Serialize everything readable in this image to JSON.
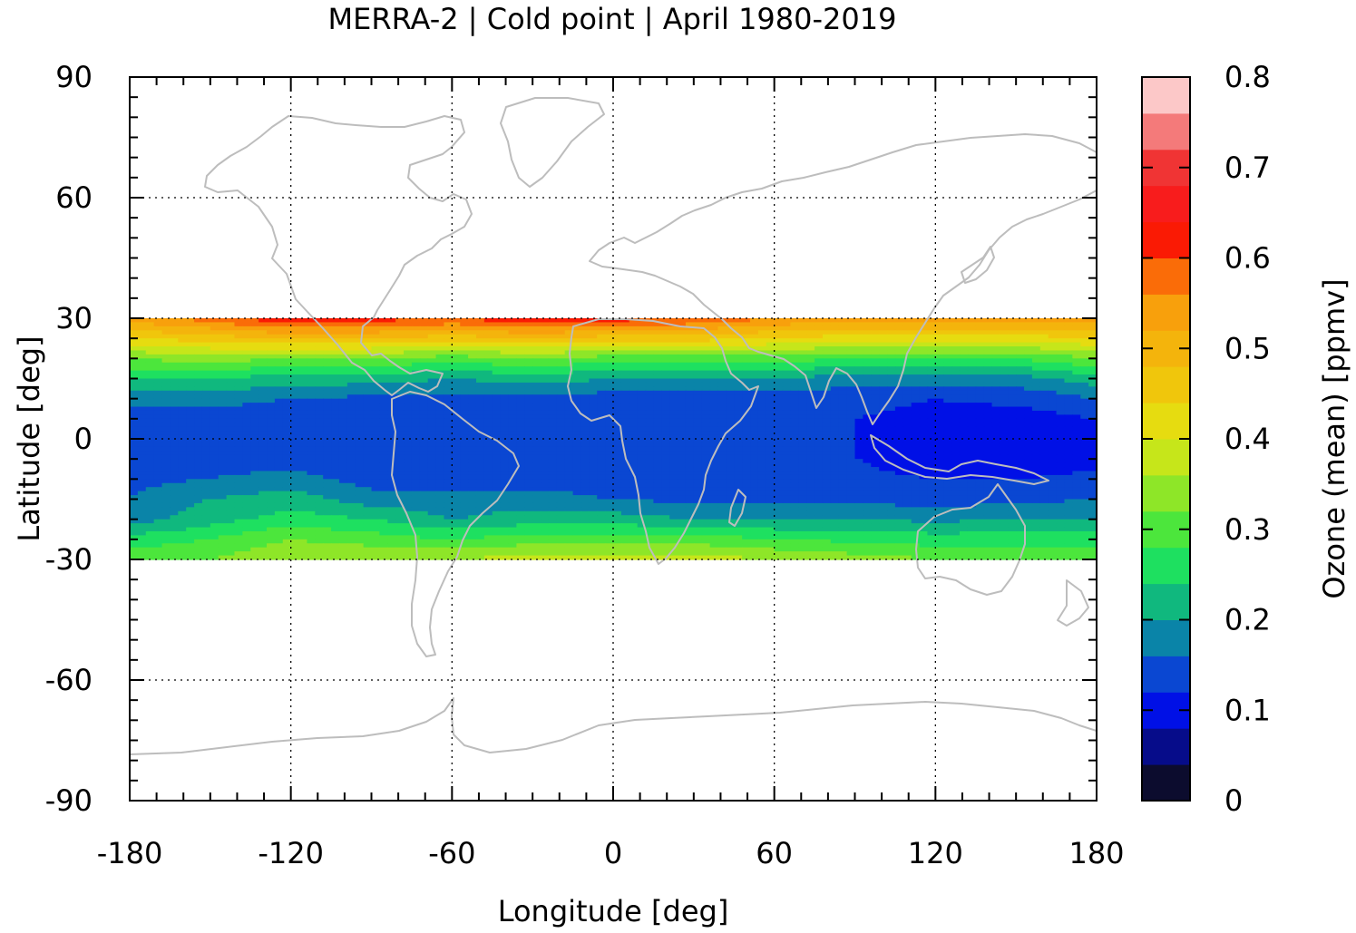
{
  "chart_data": {
    "type": "heatmap",
    "title": "MERRA-2 | Cold point | April 1980-2019",
    "xlabel": "Longitude [deg]",
    "ylabel": "Latitude [deg]",
    "colorbar_label": "Ozone (mean) [ppmv]",
    "xlim": [
      -180,
      180
    ],
    "ylim": [
      -90,
      90
    ],
    "data_lat_range": [
      -30,
      30
    ],
    "x_ticks": [
      -180,
      -120,
      -60,
      0,
      60,
      120,
      180
    ],
    "y_ticks": [
      -90,
      -60,
      -30,
      0,
      30,
      60,
      90
    ],
    "x_tick_labels": [
      "-180",
      "-120",
      "-60",
      "0",
      "60",
      "120",
      "180"
    ],
    "y_tick_labels": [
      "-90",
      "-60",
      "-30",
      "0",
      "30",
      "60",
      "90"
    ],
    "grid": "dotted",
    "colorbar": {
      "range": [
        0,
        0.8
      ],
      "ticks": [
        0,
        0.1,
        0.2,
        0.3,
        0.4,
        0.5,
        0.6,
        0.7,
        0.8
      ],
      "tick_labels": [
        "0",
        "0.1",
        "0.2",
        "0.3",
        "0.4",
        "0.5",
        "0.6",
        "0.7",
        "0.8"
      ],
      "levels": [
        {
          "min": 0.0,
          "max": 0.04,
          "color": "#0c0c2e"
        },
        {
          "min": 0.04,
          "max": 0.08,
          "color": "#060c8a"
        },
        {
          "min": 0.08,
          "max": 0.12,
          "color": "#0010e6"
        },
        {
          "min": 0.12,
          "max": 0.16,
          "color": "#0a47d2"
        },
        {
          "min": 0.16,
          "max": 0.2,
          "color": "#0a84a8"
        },
        {
          "min": 0.2,
          "max": 0.24,
          "color": "#10b87e"
        },
        {
          "min": 0.24,
          "max": 0.28,
          "color": "#1ee060"
        },
        {
          "min": 0.28,
          "max": 0.32,
          "color": "#4ce63c"
        },
        {
          "min": 0.32,
          "max": 0.36,
          "color": "#8ee628"
        },
        {
          "min": 0.36,
          "max": 0.4,
          "color": "#c6e61a"
        },
        {
          "min": 0.4,
          "max": 0.44,
          "color": "#e6dc10"
        },
        {
          "min": 0.44,
          "max": 0.48,
          "color": "#f0c60c"
        },
        {
          "min": 0.48,
          "max": 0.52,
          "color": "#f4b40c"
        },
        {
          "min": 0.52,
          "max": 0.56,
          "color": "#f8a00c"
        },
        {
          "min": 0.56,
          "max": 0.6,
          "color": "#fa6c08"
        },
        {
          "min": 0.6,
          "max": 0.64,
          "color": "#fa1a04"
        },
        {
          "min": 0.64,
          "max": 0.68,
          "color": "#f81c1c"
        },
        {
          "min": 0.68,
          "max": 0.72,
          "color": "#f03434"
        },
        {
          "min": 0.72,
          "max": 0.76,
          "color": "#f47a7a"
        },
        {
          "min": 0.76,
          "max": 0.8,
          "color": "#fcc8c8"
        }
      ]
    },
    "field": {
      "lat": [
        30,
        25,
        20,
        15,
        10,
        5,
        0,
        -5,
        -10,
        -15,
        -20,
        -25,
        -30
      ],
      "lon": [
        -180,
        -150,
        -120,
        -90,
        -60,
        -30,
        0,
        30,
        60,
        90,
        120,
        150,
        180
      ],
      "values": [
        [
          0.54,
          0.58,
          0.64,
          0.62,
          0.6,
          0.64,
          0.62,
          0.6,
          0.56,
          0.54,
          0.54,
          0.54,
          0.54
        ],
        [
          0.44,
          0.46,
          0.48,
          0.48,
          0.46,
          0.48,
          0.46,
          0.46,
          0.44,
          0.42,
          0.42,
          0.42,
          0.44
        ],
        [
          0.32,
          0.34,
          0.32,
          0.32,
          0.3,
          0.32,
          0.3,
          0.3,
          0.3,
          0.28,
          0.28,
          0.28,
          0.32
        ],
        [
          0.24,
          0.24,
          0.22,
          0.22,
          0.2,
          0.22,
          0.2,
          0.2,
          0.2,
          0.18,
          0.18,
          0.18,
          0.22
        ],
        [
          0.18,
          0.18,
          0.16,
          0.15,
          0.15,
          0.15,
          0.14,
          0.14,
          0.14,
          0.13,
          0.12,
          0.13,
          0.16
        ],
        [
          0.14,
          0.13,
          0.13,
          0.13,
          0.13,
          0.13,
          0.13,
          0.13,
          0.13,
          0.12,
          0.11,
          0.1,
          0.12
        ],
        [
          0.13,
          0.13,
          0.13,
          0.13,
          0.13,
          0.13,
          0.13,
          0.13,
          0.13,
          0.12,
          0.1,
          0.09,
          0.11
        ],
        [
          0.13,
          0.14,
          0.13,
          0.13,
          0.13,
          0.13,
          0.13,
          0.13,
          0.13,
          0.12,
          0.1,
          0.09,
          0.11
        ],
        [
          0.15,
          0.16,
          0.18,
          0.14,
          0.14,
          0.14,
          0.13,
          0.13,
          0.13,
          0.13,
          0.12,
          0.12,
          0.13
        ],
        [
          0.16,
          0.2,
          0.22,
          0.18,
          0.17,
          0.18,
          0.16,
          0.15,
          0.15,
          0.15,
          0.14,
          0.15,
          0.16
        ],
        [
          0.18,
          0.22,
          0.26,
          0.24,
          0.2,
          0.22,
          0.22,
          0.2,
          0.2,
          0.2,
          0.19,
          0.2,
          0.2
        ],
        [
          0.26,
          0.28,
          0.32,
          0.3,
          0.28,
          0.3,
          0.3,
          0.3,
          0.28,
          0.27,
          0.26,
          0.26,
          0.26
        ],
        [
          0.3,
          0.32,
          0.36,
          0.36,
          0.36,
          0.38,
          0.38,
          0.38,
          0.36,
          0.34,
          0.32,
          0.32,
          0.32
        ]
      ]
    }
  }
}
